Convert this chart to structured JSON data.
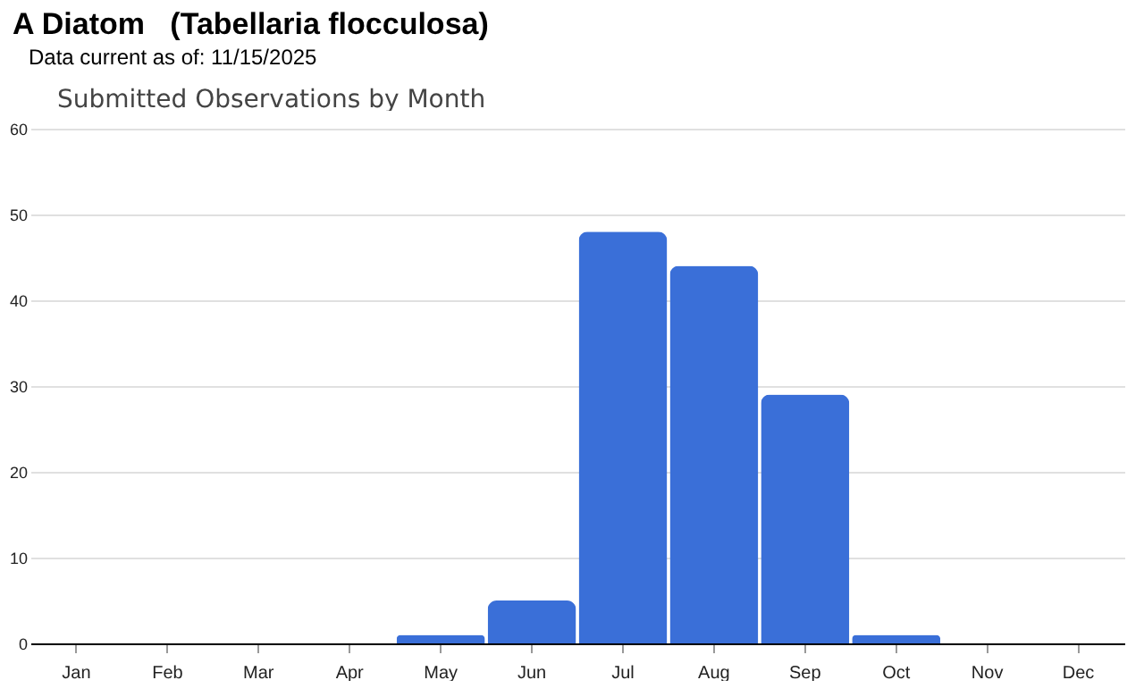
{
  "chart_data": {
    "type": "bar",
    "title": "A Diatom   (Tabellaria flocculosa)",
    "subtitle": "Data current as of: 11/15/2025",
    "annotations": [
      "Submitted Observations by Month"
    ],
    "categories": [
      "Jan",
      "Feb",
      "Mar",
      "Apr",
      "May",
      "Jun",
      "Jul",
      "Aug",
      "Sep",
      "Oct",
      "Nov",
      "Dec"
    ],
    "values": [
      0,
      0,
      0,
      0,
      1,
      5,
      48,
      44,
      29,
      1,
      0,
      0
    ],
    "color": "#3a6fd8",
    "ylim": [
      0,
      60
    ],
    "yticks": [
      0,
      10,
      20,
      30,
      40,
      50,
      60
    ],
    "grid": "y"
  }
}
